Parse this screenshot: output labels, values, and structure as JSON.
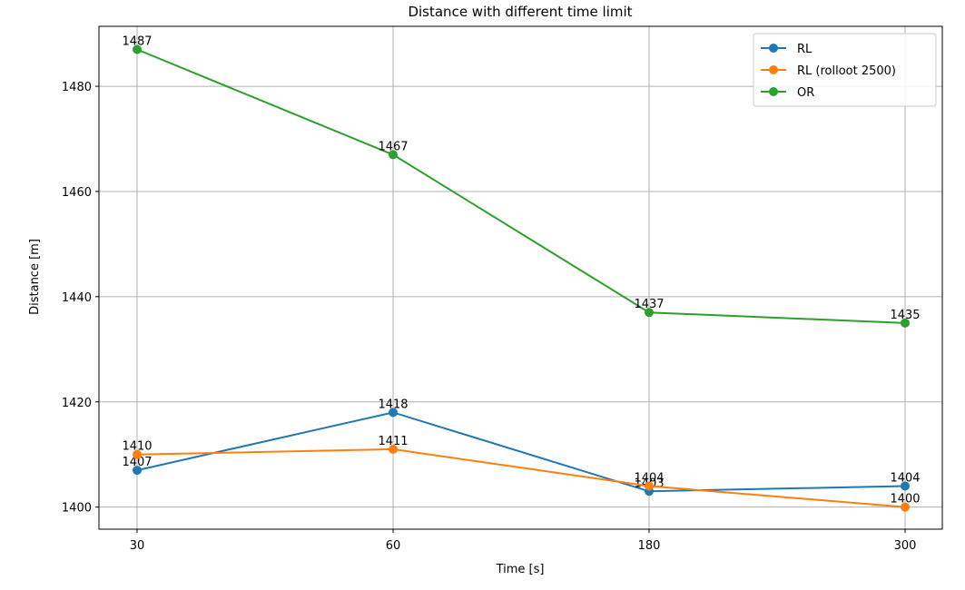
{
  "chart_data": {
    "type": "line",
    "title": "Distance with different time limit",
    "xlabel": "Time [s]",
    "ylabel": "Distance [m]",
    "categories": [
      "30",
      "60",
      "180",
      "300"
    ],
    "yticks": [
      1400,
      1420,
      1440,
      1460,
      1480
    ],
    "ylim": [
      1395.8,
      1491.4
    ],
    "grid": true,
    "legend_position": "top-right",
    "series": [
      {
        "name": "RL",
        "values": [
          1407,
          1418,
          1403,
          1404
        ],
        "color": "#1f77b4",
        "labels": [
          "1407",
          "1418",
          "1403",
          "1404"
        ]
      },
      {
        "name": "RL (rolloot 2500)",
        "values": [
          1410,
          1411,
          1404,
          1400
        ],
        "color": "#ff7f0e",
        "labels": [
          "1410",
          "1411",
          "1404",
          "1400"
        ]
      },
      {
        "name": "OR",
        "values": [
          1487,
          1467,
          1437,
          1435
        ],
        "color": "#2ca02c",
        "labels": [
          "1487",
          "1467",
          "1437",
          "1435"
        ]
      }
    ]
  }
}
